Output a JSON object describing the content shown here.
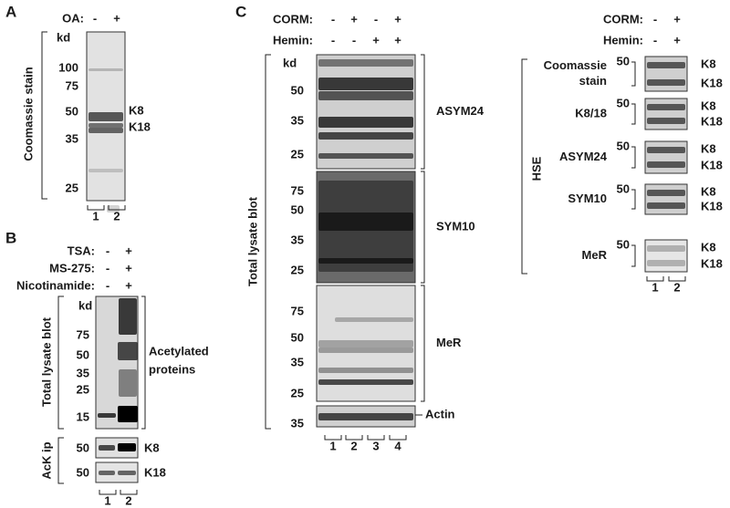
{
  "panel_a": {
    "label": "A",
    "condition": {
      "name": "OA:",
      "lanes": [
        "-",
        "+"
      ]
    },
    "axis_title": "Coomassie stain",
    "unit": "kd",
    "markers": [
      "100",
      "75",
      "50",
      "35",
      "25"
    ],
    "bands": [
      "K8",
      "K18"
    ],
    "lanes": [
      "1",
      "2"
    ]
  },
  "panel_b": {
    "label": "B",
    "conditions": [
      {
        "name": "TSA:",
        "lanes": [
          "-",
          "+"
        ]
      },
      {
        "name": "MS-275:",
        "lanes": [
          "-",
          "+"
        ]
      },
      {
        "name": "Nicotinamide:",
        "lanes": [
          "-",
          "+"
        ]
      }
    ],
    "unit": "kd",
    "markers": [
      "75",
      "50",
      "35",
      "25",
      "15"
    ],
    "blot_title": "Total lysate blot",
    "band_label": [
      "Acetylated",
      "proteins"
    ],
    "ip_title": "AcK ip",
    "ip_blots": [
      {
        "marker": "50",
        "band": "K8"
      },
      {
        "marker": "50",
        "band": "K18"
      }
    ],
    "lanes": [
      "1",
      "2"
    ]
  },
  "panel_c": {
    "label": "C",
    "conditions": [
      {
        "name": "CORM:",
        "lanes": [
          "-",
          "+",
          "-",
          "+"
        ]
      },
      {
        "name": "Hemin:",
        "lanes": [
          "-",
          "-",
          "+",
          "+"
        ]
      }
    ],
    "blot_title": "Total lysate blot",
    "unit": "kd",
    "blots": [
      {
        "name": "ASYM24",
        "markers": [
          "50",
          "35",
          "25"
        ]
      },
      {
        "name": "SYM10",
        "markers": [
          "75",
          "50",
          "35",
          "25"
        ]
      },
      {
        "name": "MeR",
        "markers": [
          "75",
          "50",
          "35",
          "25"
        ]
      },
      {
        "name": "Actin",
        "markers": [
          "35"
        ]
      }
    ],
    "lanes": [
      "1",
      "2",
      "3",
      "4"
    ],
    "hse": {
      "conditions": [
        {
          "name": "CORM:",
          "lanes": [
            "-",
            "+"
          ]
        },
        {
          "name": "Hemin:",
          "lanes": [
            "-",
            "+"
          ]
        }
      ],
      "title": "HSE",
      "rows": [
        {
          "label": [
            "Coomassie",
            "stain"
          ],
          "marker": "50",
          "bands": [
            "K8",
            "K18"
          ]
        },
        {
          "label": [
            "K8/18"
          ],
          "marker": "50",
          "bands": [
            "K8",
            "K18"
          ]
        },
        {
          "label": [
            "ASYM24"
          ],
          "marker": "50",
          "bands": [
            "K8",
            "K18"
          ]
        },
        {
          "label": [
            "SYM10"
          ],
          "marker": "50",
          "bands": [
            "K8",
            "K18"
          ]
        },
        {
          "label": [
            "MeR"
          ],
          "marker": "50",
          "bands": [
            "K8",
            "K18"
          ]
        }
      ],
      "lanes": [
        "1",
        "2"
      ]
    }
  }
}
